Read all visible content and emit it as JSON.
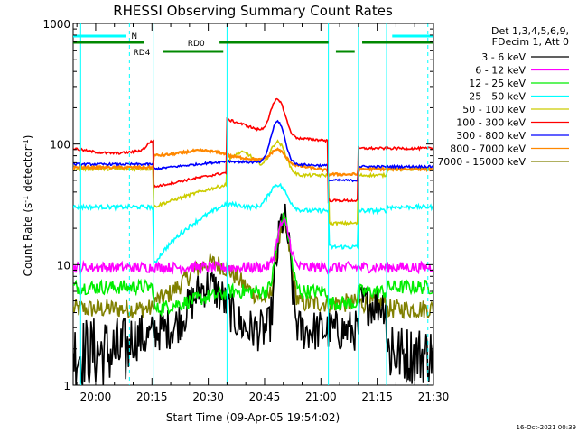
{
  "chart_data": {
    "type": "line",
    "title": "RHESSI Observing Summary Count Rates",
    "xlabel": "Start Time (09-Apr-05 19:54:02)",
    "ylabel_main": "Count Rate (s",
    "ylabel_sup1": "-1",
    "ylabel_mid": " detector",
    "ylabel_sup2": "-1",
    "ylabel_end": ")",
    "x_range_minutes": [
      -6,
      90
    ],
    "y_range": [
      1,
      1000
    ],
    "y_scale": "log",
    "x_ticks": [
      {
        "t": 0,
        "label": "20:00"
      },
      {
        "t": 15,
        "label": "20:15"
      },
      {
        "t": 30,
        "label": "20:30"
      },
      {
        "t": 45,
        "label": "20:45"
      },
      {
        "t": 60,
        "label": "21:00"
      },
      {
        "t": 75,
        "label": "21:15"
      },
      {
        "t": 90,
        "label": "21:30"
      }
    ],
    "y_ticks": [
      {
        "v": 1,
        "label": "1"
      },
      {
        "v": 10,
        "label": "10"
      },
      {
        "v": 100,
        "label": "100"
      },
      {
        "v": 1000,
        "label": "1000"
      }
    ],
    "legend_header": [
      "Det 1,3,4,5,6,9,",
      "FDecim 1, Att 0"
    ],
    "series": [
      {
        "name": "3 - 6 keV",
        "color": "#000000"
      },
      {
        "name": "6 - 12 keV",
        "color": "#ff00ff"
      },
      {
        "name": "12 - 25 keV",
        "color": "#00ee00"
      },
      {
        "name": "25 - 50 keV",
        "color": "#00ffff"
      },
      {
        "name": "50 - 100 keV",
        "color": "#cccc00"
      },
      {
        "name": "100 - 300 keV",
        "color": "#ff0000"
      },
      {
        "name": "300 - 800 keV",
        "color": "#0000ff"
      },
      {
        "name": "800 - 7000 keV",
        "color": "#ff8800"
      },
      {
        "name": "7000 - 15000 keV",
        "color": "#808000"
      }
    ],
    "flag_labels": {
      "n": "N",
      "rd0": "RD0",
      "rd4": "RD4"
    },
    "flag_colors": {
      "n": "#00ffff",
      "rd": "#008800"
    },
    "footer_date": "16-Oct-2021 00:39"
  }
}
